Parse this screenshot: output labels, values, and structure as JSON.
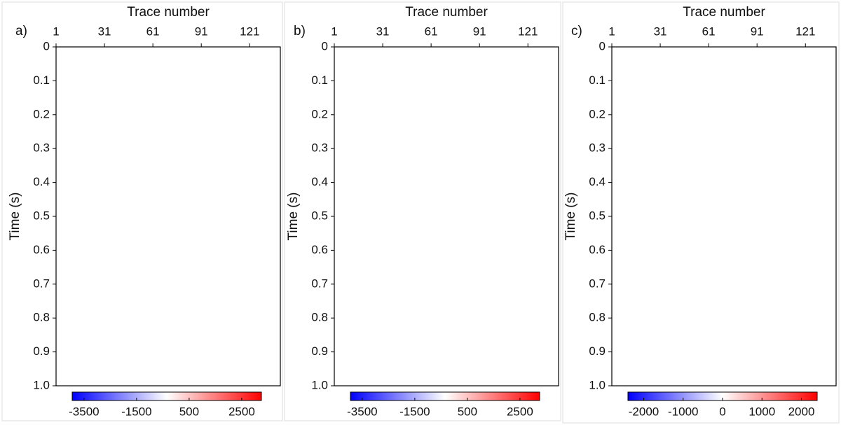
{
  "chart_data": [
    {
      "type": "heatmap",
      "panel_label": "a)",
      "xlabel": "Trace number",
      "ylabel": "Time (s)",
      "xlim": [
        1,
        140
      ],
      "xticks": [
        1,
        31,
        61,
        91,
        121
      ],
      "ylim": [
        0,
        1
      ],
      "yticks": [
        0,
        0.1,
        0.2,
        0.3,
        0.4,
        0.5,
        0.6,
        0.7,
        0.8,
        0.9,
        {
          "value": 1,
          "label": "1.0"
        }
      ],
      "colorbar": {
        "clim": [
          -3950,
          3250
        ],
        "ticks": [
          -3500,
          -1500,
          500,
          2500
        ],
        "colors": [
          "#0000ff",
          "#ffffff",
          "#ff0000"
        ]
      }
    },
    {
      "type": "heatmap",
      "panel_label": "b)",
      "xlabel": "Trace number",
      "ylabel": "Time (s)",
      "xlim": [
        1,
        140
      ],
      "xticks": [
        1,
        31,
        61,
        91,
        121
      ],
      "ylim": [
        0,
        1
      ],
      "yticks": [
        0,
        0.1,
        0.2,
        0.3,
        0.4,
        0.5,
        0.6,
        0.7,
        0.8,
        0.9,
        {
          "value": 1,
          "label": "1.0"
        }
      ],
      "colorbar": {
        "clim": [
          -3950,
          3250
        ],
        "ticks": [
          -3500,
          -1500,
          500,
          2500
        ],
        "colors": [
          "#0000ff",
          "#ffffff",
          "#ff0000"
        ]
      }
    },
    {
      "type": "heatmap",
      "panel_label": "c)",
      "xlabel": "Trace number",
      "ylabel": "Time (s)",
      "xlim": [
        1,
        140
      ],
      "xticks": [
        1,
        31,
        61,
        91,
        121
      ],
      "ylim": [
        0,
        1
      ],
      "yticks": [
        0,
        0.1,
        0.2,
        0.3,
        0.4,
        0.5,
        0.6,
        0.7,
        0.8,
        0.9,
        {
          "value": 1,
          "label": "1.0"
        }
      ],
      "colorbar": {
        "clim": [
          -2400,
          2400
        ],
        "ticks": [
          -2000,
          -1000,
          0,
          1000,
          2000
        ],
        "colors": [
          "#0000ff",
          "#ffffff",
          "#ff0000"
        ]
      }
    }
  ]
}
